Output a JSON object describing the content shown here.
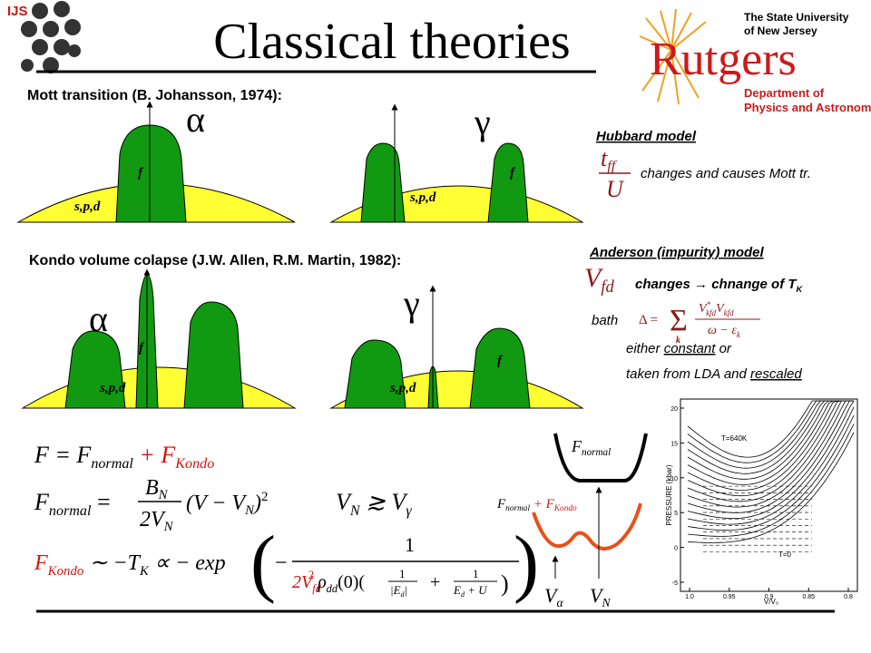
{
  "header": {
    "logo": "IJS",
    "title": "Classical theories",
    "university": [
      "The State University",
      "of New Jersey"
    ],
    "rutgers": "Rutgers",
    "department": [
      "Department of",
      "Physics and Astronomy"
    ]
  },
  "mott": {
    "heading": "Mott transition (B. Johansson, 1974):",
    "alpha": {
      "phase": "α",
      "f": "f",
      "spd": "s,p,d"
    },
    "gamma": {
      "phase": "γ",
      "f": "f",
      "spd": "s,p,d"
    }
  },
  "kondo": {
    "heading": "Kondo volume colapse (J.W. Allen, R.M. Martin, 1982):",
    "alpha": {
      "phase": "α",
      "f": "f",
      "spd": "s,p,d"
    },
    "gamma": {
      "phase": "γ",
      "f": "f",
      "spd": "s,p,d"
    }
  },
  "hubbard": {
    "heading": "Hubbard model",
    "formula": [
      "t",
      "ff",
      "U"
    ],
    "text": "changes and causes Mott tr."
  },
  "anderson": {
    "heading": "Anderson (impurity) model",
    "formula": [
      "V",
      "fd"
    ],
    "text": [
      "changes → chnange of T",
      "K"
    ],
    "bath": "bath",
    "delta": [
      "Δ =",
      "Σ",
      "k",
      "V",
      "*",
      "kfd",
      "V",
      "kfd",
      "ω − ε",
      "k"
    ],
    "either": [
      "either ",
      "constant",
      " or"
    ],
    "taken": [
      "taken from LDA and ",
      "rescaled"
    ]
  },
  "formulas": {
    "free_energy": [
      "F = F",
      "normal",
      " + F",
      "Kondo"
    ],
    "f_normal": [
      "F",
      "normal",
      " =",
      "B",
      "N",
      "2V",
      "N",
      "(V − V",
      "N",
      ")",
      "2"
    ],
    "volume": [
      "V",
      "N",
      " ≳ V",
      "γ"
    ],
    "f_kondo": [
      "F",
      "Kondo",
      " ∼ −T",
      "K",
      " ∝ − exp",
      "(",
      "−",
      "1",
      "2V",
      "fd",
      "2",
      "ρ",
      "dd",
      "(0)(",
      "1",
      "|E",
      "d",
      "|",
      "+",
      "1",
      "E",
      "d",
      " + U",
      ")",
      ")"
    ]
  },
  "energy_plot": {
    "normal": [
      "F",
      "normal"
    ],
    "total": [
      "F",
      "normal",
      " + F",
      "Kondo"
    ],
    "v_alpha": [
      "V",
      "α"
    ],
    "v_n": [
      "V",
      "N"
    ]
  },
  "pressure_plot": {
    "y_label": "PRESSURE (kbar)",
    "x_label": "V/V₀",
    "yticks": [
      "20",
      "15",
      "10",
      "5",
      "0",
      "-5"
    ],
    "xticks": [
      "1.0",
      "0.95",
      "0.9",
      "0.85",
      "0.8"
    ],
    "top_curve": "T=640K",
    "bottom_curve": "T=0"
  }
}
